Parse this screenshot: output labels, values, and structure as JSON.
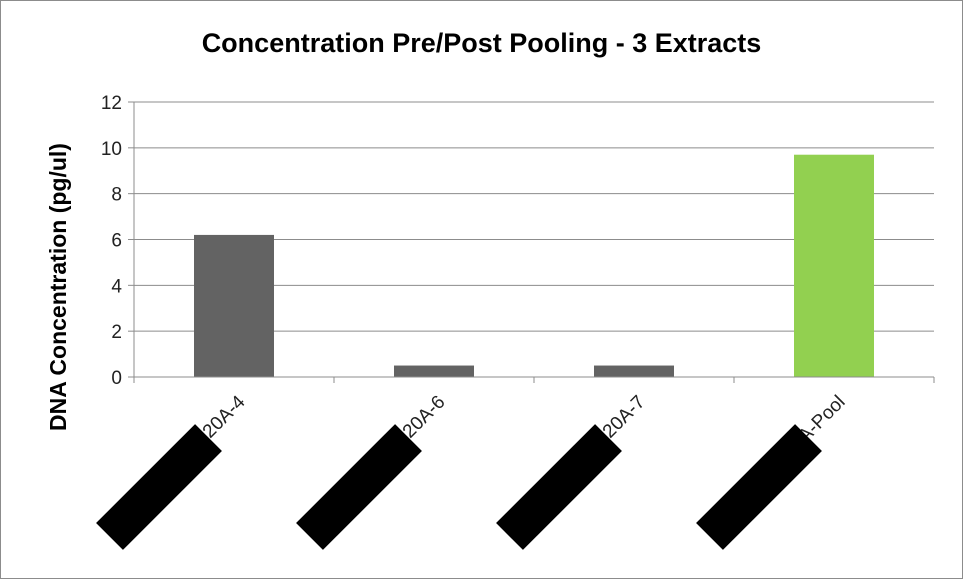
{
  "chart_data": {
    "type": "bar",
    "title": "Concentration Pre/Post Pooling - 3 Extracts",
    "xlabel": "",
    "ylabel": "DNA Concentration  (pg/ul)",
    "categories": [
      "20A-4",
      "20A-6",
      "20A-7",
      "20A-Pool"
    ],
    "values": [
      6.2,
      0.5,
      0.5,
      9.7
    ],
    "bar_colors": [
      "#636363",
      "#636363",
      "#636363",
      "#92d050"
    ],
    "ylim": [
      0,
      12
    ],
    "yticks": [
      0,
      2,
      4,
      6,
      8,
      10,
      12
    ],
    "grid": true,
    "legend": "none"
  }
}
